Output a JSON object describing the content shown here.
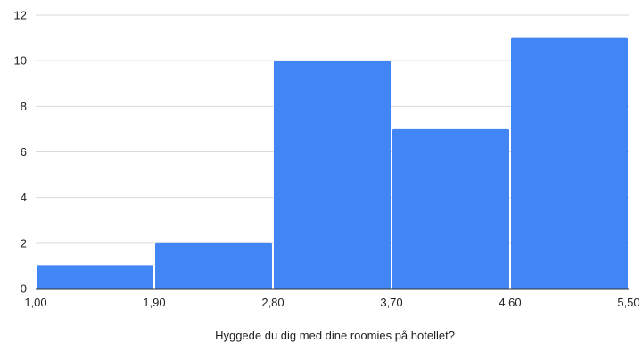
{
  "chart_data": {
    "type": "bar",
    "subtype": "histogram",
    "bins": [
      {
        "x0": 1.0,
        "x1": 1.9,
        "value": 1
      },
      {
        "x0": 1.9,
        "x1": 2.8,
        "value": 2
      },
      {
        "x0": 2.8,
        "x1": 3.7,
        "value": 10
      },
      {
        "x0": 3.7,
        "x1": 4.6,
        "value": 7
      },
      {
        "x0": 4.6,
        "x1": 5.5,
        "value": 11
      }
    ],
    "x_ticks": [
      "1,00",
      "1,90",
      "2,80",
      "3,70",
      "4,60",
      "5,50"
    ],
    "y_ticks": [
      "0",
      "2",
      "4",
      "6",
      "8",
      "10",
      "12"
    ],
    "title": "",
    "xlabel": "Hyggede du dig med dine roomies på hotellet?",
    "ylabel": "",
    "xlim": [
      1.0,
      5.5
    ],
    "ylim": [
      0,
      12
    ],
    "grid": true,
    "bar_color": "#4285f4"
  }
}
